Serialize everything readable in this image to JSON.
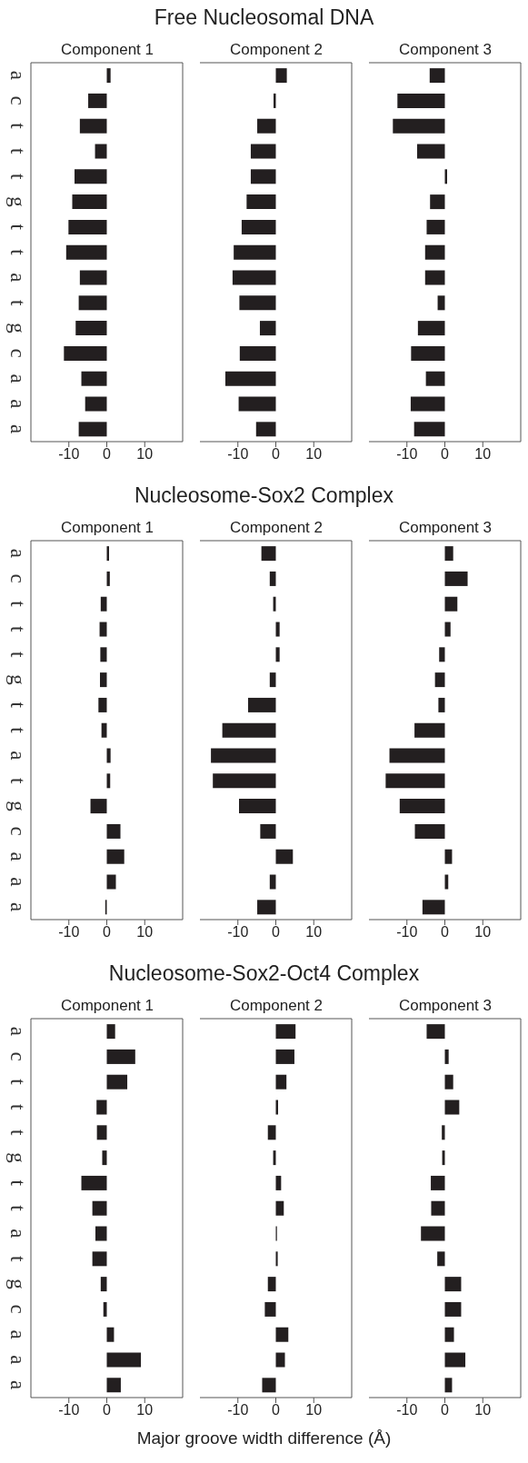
{
  "chart_data": [
    {
      "type": "bar",
      "orientation": "horizontal",
      "title": "Component 1",
      "categories": [
        "a",
        "c",
        "t",
        "t",
        "t",
        "g",
        "t",
        "t",
        "a",
        "t",
        "g",
        "c",
        "a",
        "a",
        "a"
      ],
      "values": [
        1,
        -4.9,
        -7.1,
        -3.1,
        -8.5,
        -9.1,
        -10.1,
        -10.7,
        -7.1,
        -7.4,
        -8.2,
        -11.3,
        -6.7,
        -5.7,
        -7.4
      ],
      "color": "#231f20",
      "xlim": [
        -20,
        20
      ],
      "xticks": [
        -10,
        0,
        10
      ]
    },
    {
      "type": "bar",
      "orientation": "horizontal",
      "title": "Component 2",
      "annotations": [
        "Free Nucleosomal DNA"
      ],
      "categories": [
        null,
        null,
        null,
        null,
        null,
        null,
        null,
        null,
        null,
        null,
        null,
        null,
        null,
        null,
        null
      ],
      "values": [
        2.9,
        -0.6,
        -4.9,
        -6.6,
        -6.6,
        -7.7,
        -9,
        -11.1,
        -11.4,
        -9.6,
        -4.2,
        -9.5,
        -13.3,
        -9.8,
        -5.2
      ],
      "color": "#231f20",
      "xlim": [
        -20,
        20
      ],
      "xticks": [
        -10,
        0,
        10
      ],
      "tick_labels": "x"
    },
    {
      "type": "bar",
      "orientation": "horizontal",
      "title": "Component 3",
      "categories": [
        null,
        null,
        null,
        null,
        null,
        null,
        null,
        null,
        null,
        null,
        null,
        null,
        null,
        null,
        null
      ],
      "values": [
        -4,
        -12.5,
        -13.7,
        -7.3,
        0.6,
        -3.9,
        -4.8,
        -5.2,
        -5.2,
        -1.9,
        -7.1,
        -8.9,
        -5,
        -9,
        -8.1
      ],
      "color": "#231f20",
      "xlim": [
        -20,
        20
      ],
      "xticks": [
        -10,
        0,
        10
      ],
      "tick_labels": "x"
    },
    {
      "type": "bar",
      "orientation": "horizontal",
      "title": "Component 1",
      "categories": [
        "a",
        "c",
        "t",
        "t",
        "t",
        "g",
        "t",
        "t",
        "a",
        "t",
        "g",
        "c",
        "a",
        "a",
        "a"
      ],
      "values": [
        0.6,
        0.8,
        -1.6,
        -1.9,
        -1.7,
        -1.8,
        -2.2,
        -1.4,
        1,
        0.9,
        -4.3,
        3.6,
        4.6,
        2.4,
        -0.4
      ],
      "color": "#231f20",
      "xlim": [
        -20,
        20
      ],
      "xticks": [
        -10,
        0,
        10
      ]
    },
    {
      "type": "bar",
      "orientation": "horizontal",
      "title": "Component 2",
      "annotations": [
        "Nucleosome-Sox2 Complex"
      ],
      "categories": [
        null,
        null,
        null,
        null,
        null,
        null,
        null,
        null,
        null,
        null,
        null,
        null,
        null,
        null,
        null
      ],
      "values": [
        -3.8,
        -1.6,
        -0.7,
        1,
        1,
        -1.6,
        -7.3,
        -14.1,
        -17.1,
        -16.6,
        -9.7,
        -4.1,
        4.5,
        -1.6,
        -4.9
      ],
      "color": "#231f20",
      "xlim": [
        -20,
        20
      ],
      "xticks": [
        -10,
        0,
        10
      ],
      "tick_labels": "x"
    },
    {
      "type": "bar",
      "orientation": "horizontal",
      "title": "Component 3",
      "categories": [
        null,
        null,
        null,
        null,
        null,
        null,
        null,
        null,
        null,
        null,
        null,
        null,
        null,
        null,
        null
      ],
      "values": [
        2.2,
        6,
        3.3,
        1.5,
        -1.5,
        -2.6,
        -1.7,
        -8,
        -14.6,
        -15.6,
        -11.9,
        -7.9,
        1.9,
        0.9,
        -5.9
      ],
      "color": "#231f20",
      "xlim": [
        -20,
        20
      ],
      "xticks": [
        -10,
        0,
        10
      ],
      "tick_labels": "x"
    },
    {
      "type": "bar",
      "orientation": "horizontal",
      "title": "Component 1",
      "categories": [
        "a",
        "c",
        "t",
        "t",
        "t",
        "g",
        "t",
        "t",
        "a",
        "t",
        "g",
        "c",
        "a",
        "a",
        "a"
      ],
      "values": [
        2.2,
        7.5,
        5.4,
        -2.7,
        -2.6,
        -1.2,
        -6.7,
        -3.8,
        -3,
        -3.8,
        -1.6,
        -0.9,
        1.9,
        9,
        3.7
      ],
      "color": "#231f20",
      "xlim": [
        -20,
        20
      ],
      "xticks": [
        -10,
        0,
        10
      ]
    },
    {
      "type": "bar",
      "orientation": "horizontal",
      "title": "Component 2",
      "annotations": [
        "Nucleosome-Sox2-Oct4 Complex"
      ],
      "xlabel": "Major groove width difference (Å)",
      "categories": [
        null,
        null,
        null,
        null,
        null,
        null,
        null,
        null,
        null,
        null,
        null,
        null,
        null,
        null,
        null
      ],
      "values": [
        5.2,
        4.9,
        2.8,
        0.6,
        -2.1,
        -0.7,
        1.4,
        2.1,
        0.3,
        0.5,
        -2.1,
        -2.9,
        3.3,
        2.4,
        -3.6
      ],
      "color": "#231f20",
      "xlim": [
        -20,
        20
      ],
      "xticks": [
        -10,
        0,
        10
      ],
      "tick_labels": "x"
    },
    {
      "type": "bar",
      "orientation": "horizontal",
      "title": "Component 3",
      "categories": [
        null,
        null,
        null,
        null,
        null,
        null,
        null,
        null,
        null,
        null,
        null,
        null,
        null,
        null,
        null
      ],
      "values": [
        -4.8,
        1,
        2.2,
        3.8,
        -0.8,
        -0.7,
        -3.7,
        -3.6,
        -6.3,
        -2,
        4.3,
        4.3,
        2.4,
        5.4,
        1.9
      ],
      "color": "#231f20",
      "xlim": [
        -20,
        20
      ],
      "xticks": [
        -10,
        0,
        10
      ],
      "tick_labels": "x"
    }
  ]
}
